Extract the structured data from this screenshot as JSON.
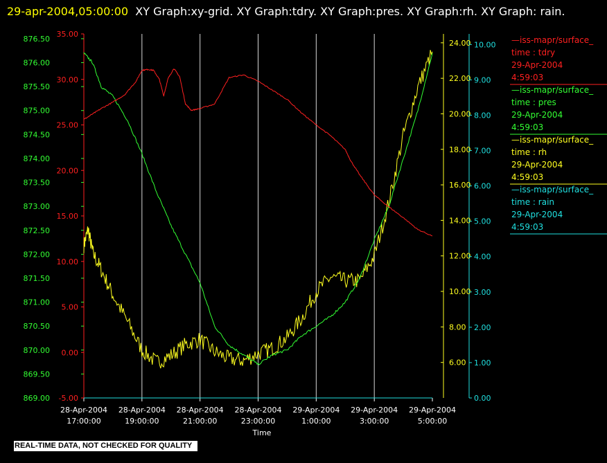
{
  "title": {
    "datetime": "29-apr-2004,05:00:00",
    "text": "XY Graph:xy-grid.  XY Graph:tdry.  XY Graph:pres.  XY Graph:rh.  XY Graph: rain."
  },
  "disclaimer": "REAL-TIME DATA, NOT CHECKED FOR QUALITY",
  "colors": {
    "tdry": "#ff2020",
    "pres": "#33ff33",
    "rh": "#ffff20",
    "rain": "#20e0e0",
    "grid": "#ffffff",
    "background": "#000000"
  },
  "chart_data": {
    "type": "line",
    "xlabel": "Time",
    "x_ticks": [
      [
        "28-Apr-2004",
        "17:00:00"
      ],
      [
        "28-Apr-2004",
        "19:00:00"
      ],
      [
        "28-Apr-2004",
        "21:00:00"
      ],
      [
        "28-Apr-2004",
        "23:00:00"
      ],
      [
        "29-Apr-2004",
        "1:00:00"
      ],
      [
        "29-Apr-2004",
        "3:00:00"
      ],
      [
        "29-Apr-2004",
        "5:00:00"
      ]
    ],
    "xlim_hours": [
      0,
      12
    ],
    "grid": "vertical lines at each x tick",
    "axes": {
      "pres": {
        "ylim": [
          869.0,
          876.6
        ],
        "ticks": [
          "869.00",
          "869.50",
          "870.00",
          "870.50",
          "871.00",
          "871.50",
          "872.00",
          "872.50",
          "873.00",
          "873.50",
          "874.00",
          "874.50",
          "875.00",
          "875.50",
          "876.00",
          "876.50"
        ]
      },
      "tdry": {
        "ylim": [
          -5.0,
          35.0
        ],
        "ticks": [
          "-5.00",
          "0.00",
          "5.00",
          "10.00",
          "15.00",
          "20.00",
          "25.00",
          "30.00",
          "35.00"
        ]
      },
      "rh": {
        "ylim": [
          4.0,
          24.5
        ],
        "ticks": [
          "6.00",
          "8.00",
          "10.00",
          "12.00",
          "14.00",
          "16.00",
          "18.00",
          "20.00",
          "22.00",
          "24.00"
        ]
      },
      "rain": {
        "ylim": [
          0.0,
          10.3
        ],
        "ticks": [
          "0.00",
          "1.00",
          "2.00",
          "3.00",
          "4.00",
          "5.00",
          "6.00",
          "7.00",
          "8.00",
          "9.00",
          "10.00"
        ]
      }
    },
    "legend_position": "right",
    "series": [
      {
        "key": "tdry",
        "legend": [
          "—iss-mapr/surface_",
          "time : tdry",
          "29-Apr-2004",
          "4:59:03"
        ],
        "x": [
          0,
          0.3,
          0.6,
          1.0,
          1.4,
          1.8,
          2.0,
          2.2,
          2.4,
          2.6,
          2.75,
          2.9,
          3.1,
          3.3,
          3.5,
          3.7,
          4.0,
          4.5,
          5.0,
          5.5,
          6.0,
          6.5,
          7.0,
          7.5,
          8.0,
          8.5,
          9.0,
          9.2,
          9.5,
          10.0,
          10.5,
          11.0,
          11.5,
          12.0
        ],
        "y": [
          25.6,
          26.2,
          26.8,
          27.5,
          28.3,
          29.8,
          31.0,
          31.1,
          31.0,
          30.0,
          28.2,
          30.1,
          31.2,
          30.3,
          27.3,
          26.6,
          26.8,
          27.3,
          30.2,
          30.5,
          29.8,
          28.8,
          27.8,
          26.3,
          25.0,
          23.8,
          22.3,
          21.0,
          19.5,
          17.3,
          16.0,
          14.8,
          13.5,
          12.8
        ]
      },
      {
        "key": "pres",
        "legend": [
          "—iss-mapr/surface_",
          "time : pres",
          "29-Apr-2004",
          "4:59:03"
        ],
        "x": [
          0,
          0.3,
          0.6,
          1.0,
          1.5,
          2.0,
          2.5,
          3.0,
          3.5,
          4.0,
          4.5,
          5.0,
          5.5,
          6.0,
          6.5,
          7.0,
          7.5,
          8.0,
          8.5,
          9.0,
          9.5,
          10.0,
          10.5,
          11.0,
          11.5,
          12.0
        ],
        "y": [
          876.2,
          876.0,
          875.5,
          875.3,
          874.8,
          874.1,
          873.3,
          872.6,
          872.0,
          871.4,
          870.5,
          870.1,
          869.9,
          869.7,
          869.9,
          870.0,
          870.3,
          870.5,
          870.7,
          871.0,
          871.5,
          872.3,
          873.0,
          874.0,
          875.0,
          876.2
        ]
      },
      {
        "key": "rh",
        "legend": [
          "—iss-mapr/surface_",
          "time : rh",
          "29-Apr-2004",
          "4:59:03"
        ],
        "x": [
          0,
          0.15,
          0.3,
          0.6,
          1.0,
          1.5,
          2.0,
          2.5,
          3.0,
          3.5,
          4.0,
          4.5,
          5.0,
          5.5,
          6.0,
          6.5,
          7.0,
          7.5,
          8.0,
          8.5,
          9.0,
          9.5,
          10.0,
          10.5,
          11.0,
          11.5,
          12.0
        ],
        "y": [
          12.6,
          13.5,
          12.2,
          11.2,
          9.8,
          8.3,
          6.7,
          6.0,
          6.4,
          7.0,
          7.3,
          6.6,
          6.2,
          6.1,
          6.5,
          6.8,
          7.4,
          8.5,
          10.0,
          10.8,
          10.6,
          10.6,
          12.0,
          15.0,
          18.8,
          21.5,
          23.5
        ]
      },
      {
        "key": "rain",
        "legend": [
          "—iss-mapr/surface_",
          "time : rain",
          "29-Apr-2004",
          "4:59:03"
        ],
        "x": [
          0,
          12
        ],
        "y": [
          0.0,
          0.0
        ]
      }
    ]
  }
}
